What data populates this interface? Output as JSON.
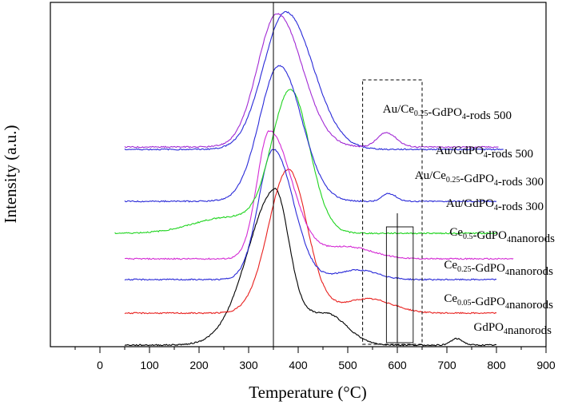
{
  "chart_data": {
    "type": "line",
    "xlabel": "Temperature (°C)",
    "ylabel": "Intensity (a.u.)",
    "xlim": [
      -100,
      900
    ],
    "xticks": [
      0,
      100,
      200,
      300,
      400,
      500,
      600,
      700,
      800,
      900
    ],
    "y_ticks_shown": false,
    "annotations": {
      "vertical_line_at": 350,
      "dashed_box_x": [
        530,
        650
      ],
      "small_boxes_x": [
        [
          578,
          600
        ],
        [
          600,
          632
        ]
      ]
    },
    "series": [
      {
        "name": "GdPO4 nanorods",
        "label_parts": [
          "GdPO",
          "4",
          "nanorods"
        ],
        "color": "#000000",
        "baseline": 0,
        "x_range": [
          50,
          800
        ],
        "peaks": [
          {
            "c": 352,
            "h": 175,
            "wl": 55,
            "wr": 28
          },
          {
            "c": 455,
            "h": 40,
            "wl": 90,
            "wr": 42
          },
          {
            "c": 720,
            "h": 8,
            "wl": 12,
            "wr": 12
          }
        ]
      },
      {
        "name": "Ce0.05-GdPO4 nanorods",
        "label_parts": [
          "Ce",
          "0.05",
          "-GdPO",
          "4",
          "nanorods"
        ],
        "color": "#e8201e",
        "baseline": 40,
        "x_range": [
          50,
          800
        ],
        "peaks": [
          {
            "c": 380,
            "h": 180,
            "wl": 40,
            "wr": 38
          },
          {
            "c": 540,
            "h": 18,
            "wl": 50,
            "wr": 50
          }
        ]
      },
      {
        "name": "Ce0.25-GdPO4 nanorods",
        "label_parts": [
          "Ce",
          "0.25",
          "-GdPO",
          "4",
          "nanorods"
        ],
        "color": "#2a2ad8",
        "baseline": 82,
        "x_range": [
          50,
          800
        ],
        "peaks": [
          {
            "c": 350,
            "h": 163,
            "wl": 30,
            "wr": 40
          },
          {
            "c": 520,
            "h": 12,
            "wl": 40,
            "wr": 40
          }
        ]
      },
      {
        "name": "Ce0.5-GdPO4 nanorods",
        "label_parts": [
          "Ce",
          "0.5",
          "-GdPO",
          "4",
          "nanorods"
        ],
        "color": "#d42ad4",
        "baseline": 108,
        "x_range": [
          50,
          835
        ],
        "peaks": [
          {
            "c": 342,
            "h": 160,
            "wl": 25,
            "wr": 45
          },
          {
            "c": 500,
            "h": 15,
            "wl": 50,
            "wr": 50
          }
        ]
      },
      {
        "name": "Au/GdPO4-rods 300",
        "label_parts": [
          "Au/GdPO",
          "4",
          "-rods 300"
        ],
        "color": "#1fd41f",
        "baseline": 140,
        "x_range": [
          30,
          800
        ],
        "peaks": [
          {
            "c": 385,
            "h": 176,
            "wl": 38,
            "wr": 38
          },
          {
            "c": 260,
            "h": 20,
            "wl": 70,
            "wr": 70
          }
        ]
      },
      {
        "name": "Au/Ce0.25-GdPO4-rods 300",
        "label_parts": [
          "Au/Ce",
          "0.25",
          "-GdPO",
          "4",
          "-rods 300"
        ],
        "color": "#2a2ad8",
        "baseline": 180,
        "x_range": [
          50,
          800
        ],
        "peaks": [
          {
            "c": 362,
            "h": 170,
            "wl": 40,
            "wr": 45
          },
          {
            "c": 582,
            "h": 10,
            "wl": 12,
            "wr": 15
          }
        ]
      },
      {
        "name": "Au/GdPO4-rods 500",
        "label_parts": [
          "Au/GdPO",
          "4",
          "-rods 500"
        ],
        "color": "#2a2ad8",
        "baseline": 245,
        "x_range": [
          50,
          815
        ],
        "peaks": [
          {
            "c": 375,
            "h": 172,
            "wl": 45,
            "wr": 55
          }
        ]
      },
      {
        "name": "Au/Ce0.25-GdPO4-rods 500",
        "label_parts": [
          "Au/Ce",
          "0.25",
          "-GdPO",
          "4",
          "-rods 500"
        ],
        "color": "#a22ad4",
        "baseline": 248,
        "x_range": [
          50,
          805
        ],
        "peaks": [
          {
            "c": 358,
            "h": 167,
            "wl": 40,
            "wr": 50
          },
          {
            "c": 578,
            "h": 18,
            "wl": 18,
            "wr": 20
          }
        ]
      }
    ]
  }
}
